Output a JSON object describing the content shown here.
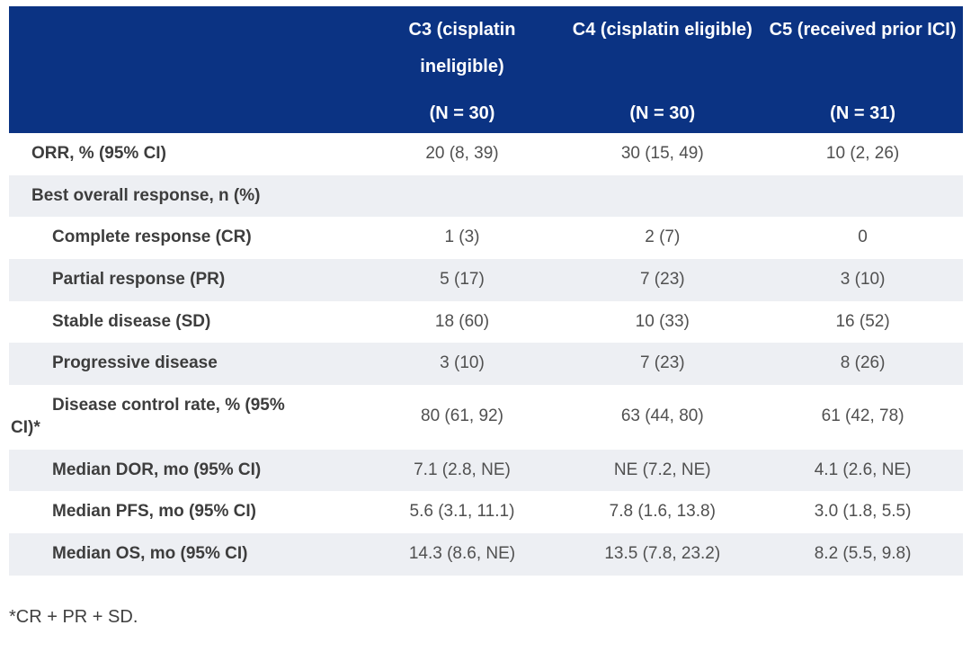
{
  "colors": {
    "header_bg": "#0b3383",
    "header_text": "#ffffff",
    "alt_row_bg": "#edeff3",
    "label_text": "#3d3d3d",
    "value_text": "#505050"
  },
  "table": {
    "columns": [
      {
        "title": "C3 (cisplatin ineligible)",
        "n": "(N = 30)"
      },
      {
        "title": "C4 (cisplatin eligible)",
        "n": "(N = 30)"
      },
      {
        "title": "C5 (received prior ICI)",
        "n": "(N = 31)"
      }
    ],
    "rows": [
      {
        "label": "ORR, % (95% CI)",
        "values": [
          "20 (8, 39)",
          "30 (15, 49)",
          "10 (2, 26)"
        ]
      },
      {
        "label": "Best overall response, n (%)",
        "values": [
          "",
          "",
          ""
        ]
      },
      {
        "label": "Complete response (CR)",
        "values": [
          "1 (3)",
          "2 (7)",
          "0"
        ]
      },
      {
        "label": "Partial response (PR)",
        "values": [
          "5 (17)",
          "7 (23)",
          "3 (10)"
        ]
      },
      {
        "label": "Stable disease (SD)",
        "values": [
          "18 (60)",
          "10 (33)",
          "16 (52)"
        ]
      },
      {
        "label": "Progressive disease",
        "values": [
          "3 (10)",
          "7 (23)",
          "8 (26)"
        ]
      },
      {
        "label": "Disease control rate, % (95% CI)*",
        "values": [
          "80 (61, 92)",
          "63 (44, 80)",
          "61 (42, 78)"
        ]
      },
      {
        "label": "Median DOR, mo (95% CI)",
        "values": [
          "7.1 (2.8, NE)",
          "NE (7.2, NE)",
          "4.1 (2.6, NE)"
        ]
      },
      {
        "label": "Median PFS, mo (95% CI)",
        "values": [
          "5.6 (3.1, 11.1)",
          "7.8 (1.6, 13.8)",
          "3.0 (1.8, 5.5)"
        ]
      },
      {
        "label": "Median OS, mo (95% CI)",
        "values": [
          "14.3 (8.6, NE)",
          "13.5 (7.8, 23.2)",
          "8.2 (5.5, 9.8)"
        ]
      }
    ],
    "footnote": "*CR + PR + SD."
  }
}
